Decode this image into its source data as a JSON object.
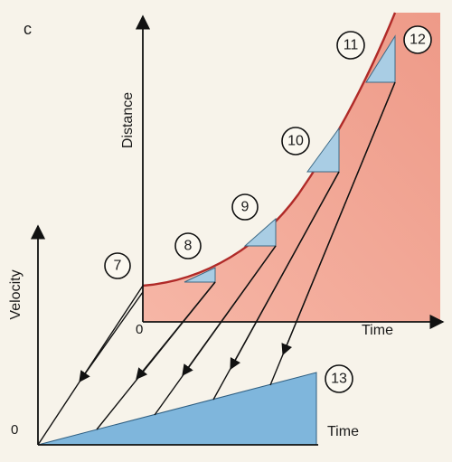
{
  "panel_letter": "c",
  "axes": {
    "distance_label": "Distance",
    "time_top_label": "Time",
    "zero_top": "0",
    "velocity_label": "Velocity",
    "time_bottom_label": "Time",
    "zero_bottom": "0"
  },
  "markers": [
    "7",
    "8",
    "9",
    "10",
    "11",
    "12",
    "13"
  ],
  "colors": {
    "curve_area": "#f2a595",
    "curve_line": "#b02a28",
    "triangle_fill": "#a9cde4",
    "velocity_fill": "#7fb6dc",
    "ink": "#111111",
    "paper": "#f7f3ea"
  }
}
